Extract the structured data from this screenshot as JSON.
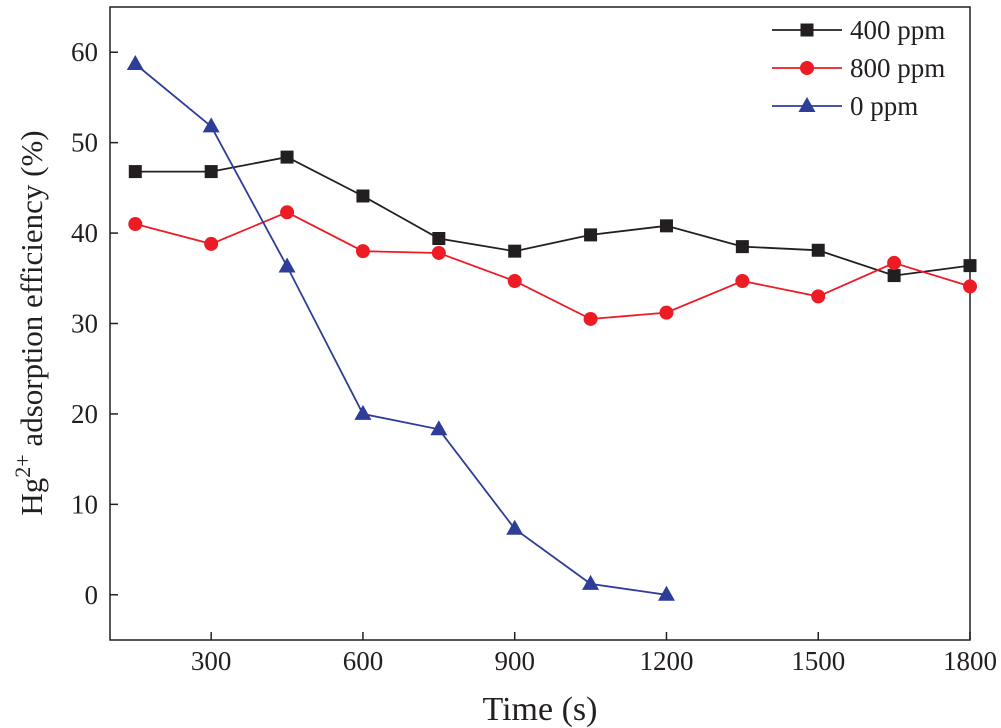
{
  "chart_data": {
    "type": "line",
    "title": "",
    "xlabel": "Time (s)",
    "ylabel": {
      "base": "Hg",
      "superscript": "2+",
      "rest": " adsorption efficiency (%)"
    },
    "xlim": [
      100,
      1800
    ],
    "ylim": [
      -5,
      65
    ],
    "x_ticks": [
      300,
      600,
      900,
      1200,
      1500,
      1800
    ],
    "y_ticks": [
      0,
      10,
      20,
      30,
      40,
      50,
      60
    ],
    "grid": false,
    "legend_position": "top-right",
    "series": [
      {
        "name": "400 ppm",
        "color": "#231f20",
        "marker": "square",
        "x": [
          150,
          300,
          450,
          600,
          750,
          900,
          1050,
          1200,
          1350,
          1500,
          1650,
          1800
        ],
        "y": [
          46.8,
          46.8,
          48.4,
          44.1,
          39.4,
          38.0,
          39.8,
          40.8,
          38.5,
          38.1,
          35.3,
          36.4
        ]
      },
      {
        "name": "800 ppm",
        "color": "#ed1c24",
        "marker": "circle",
        "x": [
          150,
          300,
          450,
          600,
          750,
          900,
          1050,
          1200,
          1350,
          1500,
          1650,
          1800
        ],
        "y": [
          41.0,
          38.8,
          42.3,
          38.0,
          37.8,
          34.7,
          30.5,
          31.2,
          34.7,
          33.0,
          36.7,
          34.1
        ]
      },
      {
        "name": "0 ppm",
        "color": "#2e3d98",
        "marker": "triangle",
        "x": [
          150,
          300,
          450,
          600,
          750,
          900,
          1050,
          1200
        ],
        "y": [
          58.7,
          51.8,
          36.3,
          20.0,
          18.3,
          7.3,
          1.2,
          0.0
        ]
      }
    ]
  }
}
